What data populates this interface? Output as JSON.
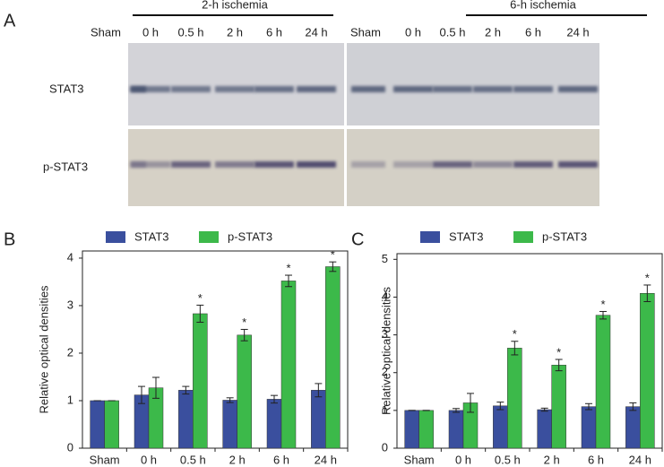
{
  "blot": {
    "panel_label": "A",
    "groups": [
      "2-h ischemia",
      "6-h ischemia"
    ],
    "lanes": [
      "Sham",
      "0 h",
      "0.5 h",
      "2 h",
      "6 h",
      "24 h",
      "Sham",
      "0 h",
      "0.5 h",
      "2 h",
      "6 h",
      "24 h"
    ],
    "rows": [
      "STAT3",
      "p-STAT3"
    ]
  },
  "chart_data": [
    {
      "type": "bar",
      "panel_label": "B",
      "y_label": "Relative optical densities",
      "categories": [
        "Sham",
        "0 h",
        "0.5 h",
        "2 h",
        "6 h",
        "24 h"
      ],
      "series": [
        {
          "name": "STAT3",
          "color": "#3a4f9e",
          "values": [
            1,
            1.12,
            1.22,
            1.01,
            1.03,
            1.22
          ],
          "errors": [
            0,
            0.18,
            0.08,
            0.05,
            0.08,
            0.14
          ],
          "markers": [
            null,
            null,
            null,
            null,
            null,
            null
          ]
        },
        {
          "name": "p-STAT3",
          "color": "#3cb94a",
          "values": [
            1,
            1.27,
            2.83,
            2.38,
            3.52,
            3.82
          ],
          "errors": [
            0,
            0.22,
            0.18,
            0.12,
            0.12,
            0.1
          ],
          "markers": [
            null,
            null,
            "*",
            "*",
            "*",
            "*"
          ]
        }
      ],
      "ylim": [
        0,
        4.15
      ],
      "yticks": [
        0,
        1,
        2,
        3,
        4
      ]
    },
    {
      "type": "bar",
      "panel_label": "C",
      "y_label": "Relative optical densities",
      "categories": [
        "Sham",
        "0 h",
        "0.5 h",
        "2 h",
        "6 h",
        "24 h"
      ],
      "series": [
        {
          "name": "STAT3",
          "color": "#3a4f9e",
          "values": [
            1,
            1.0,
            1.12,
            1.02,
            1.1,
            1.1
          ],
          "errors": [
            0,
            0.05,
            0.1,
            0.04,
            0.08,
            0.1
          ],
          "markers": [
            null,
            null,
            null,
            null,
            null,
            null
          ]
        },
        {
          "name": "p-STAT3",
          "color": "#3cb94a",
          "values": [
            1,
            1.2,
            2.65,
            2.2,
            3.52,
            4.1
          ],
          "errors": [
            0,
            0.25,
            0.18,
            0.15,
            0.1,
            0.22
          ],
          "markers": [
            null,
            null,
            "*",
            "*",
            "*",
            "*"
          ]
        }
      ],
      "ylim": [
        0,
        5.15
      ],
      "yticks": [
        0,
        1,
        2,
        3,
        4,
        5
      ]
    }
  ]
}
